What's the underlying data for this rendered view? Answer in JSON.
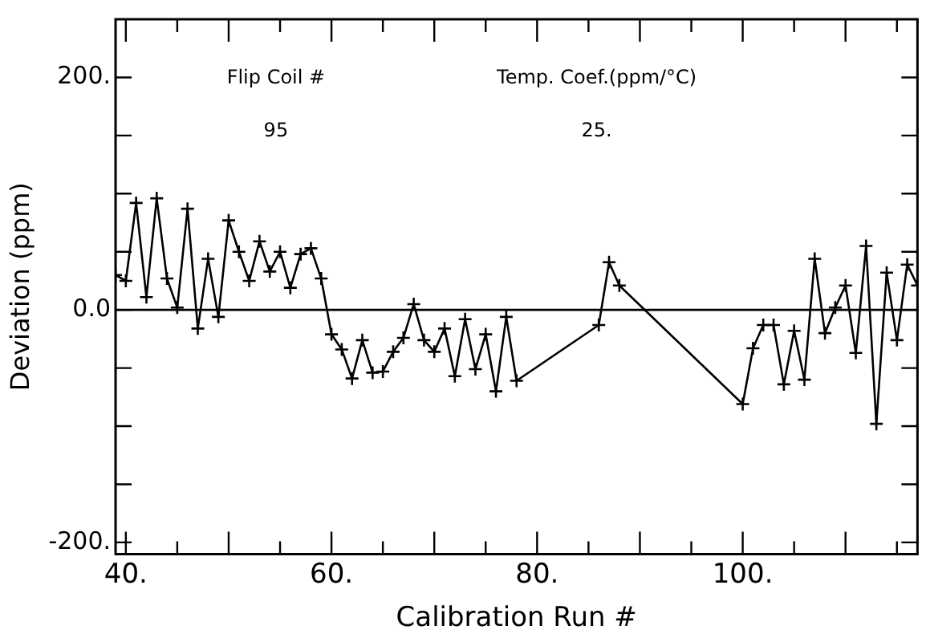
{
  "chart_data": {
    "type": "line",
    "xlabel": "Calibration Run #",
    "ylabel": "Deviation (ppm)",
    "annotations": [
      "Flip Coil #",
      "95",
      "Temp. Coef.(ppm/°C)",
      "25."
    ],
    "x": [
      39,
      40,
      41,
      42,
      43,
      44,
      45,
      46,
      47,
      48,
      49,
      50,
      51,
      52,
      53,
      54,
      55,
      56,
      57,
      58,
      59,
      60,
      61,
      62,
      63,
      64,
      65,
      66,
      67,
      68,
      69,
      70,
      71,
      72,
      73,
      74,
      75,
      76,
      77,
      78,
      86,
      87,
      88,
      100,
      101,
      102,
      103,
      104,
      105,
      106,
      107,
      108,
      109,
      110,
      111,
      112,
      113,
      114,
      115,
      116,
      117
    ],
    "series": [
      {
        "color": "#000000",
        "values": [
          30,
          25,
          92,
          11,
          96,
          27,
          2,
          87,
          -16,
          44,
          -6,
          77,
          50,
          25,
          59,
          33,
          50,
          19,
          48,
          53,
          27,
          -21,
          -34,
          -59,
          -26,
          -54,
          -53,
          -36,
          -24,
          5,
          -26,
          -36,
          -16,
          -57,
          -8,
          -51,
          -21,
          -70,
          -6,
          -61,
          -13,
          41,
          21,
          -81,
          -33,
          -13,
          -13,
          -64,
          -18,
          -60,
          44,
          -20,
          2,
          21,
          -37,
          55,
          -98,
          32,
          -26,
          39,
          21
        ]
      }
    ],
    "xlim": [
      39,
      117
    ],
    "xticks": [
      {
        "value": 40,
        "label": "40."
      },
      {
        "value": 45,
        "label": null
      },
      {
        "value": 50,
        "label": null
      },
      {
        "value": 55,
        "label": null
      },
      {
        "value": 60,
        "label": "60."
      },
      {
        "value": 65,
        "label": null
      },
      {
        "value": 70,
        "label": null
      },
      {
        "value": 75,
        "label": null
      },
      {
        "value": 80,
        "label": "80."
      },
      {
        "value": 85,
        "label": null
      },
      {
        "value": 90,
        "label": null
      },
      {
        "value": 95,
        "label": null
      },
      {
        "value": 100,
        "label": "100."
      },
      {
        "value": 105,
        "label": null
      },
      {
        "value": 110,
        "label": null
      },
      {
        "value": 115,
        "label": null
      }
    ],
    "ylim": [
      -210,
      250
    ],
    "yticks": [
      {
        "value": -200,
        "label": "-200."
      },
      {
        "value": -150,
        "label": null
      },
      {
        "value": -100,
        "label": null
      },
      {
        "value": -50,
        "label": null
      },
      {
        "value": 0,
        "label": "0.0"
      },
      {
        "value": 50,
        "label": null
      },
      {
        "value": 100,
        "label": null
      },
      {
        "value": 150,
        "label": null
      },
      {
        "value": 200,
        "label": "200."
      }
    ],
    "ref_lines": [
      {
        "axis": "y",
        "value": 0,
        "color": "#000000"
      }
    ],
    "grid": false,
    "legend": false,
    "marker": "cross",
    "line_style": "solid"
  }
}
